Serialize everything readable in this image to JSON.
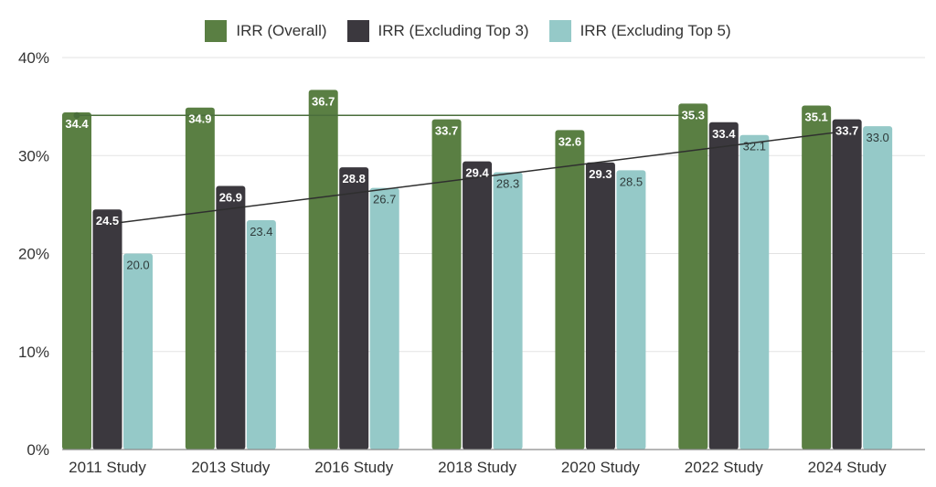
{
  "colors": {
    "overall": "#5a7f43",
    "ex3": "#3b383e",
    "ex5": "#95c9c8",
    "grid": "#e3e3e3",
    "axis": "#8a8a8a",
    "text": "#333333",
    "trend_overall": "#4a6e3c",
    "trend_ex3": "#2f2f2f"
  },
  "chart_data": {
    "type": "bar",
    "categories": [
      "2011 Study",
      "2013 Study",
      "2016 Study",
      "2018 Study",
      "2020 Study",
      "2022 Study",
      "2024 Study"
    ],
    "series": [
      {
        "name": "IRR (Overall)",
        "values": [
          34.4,
          34.9,
          36.7,
          33.7,
          32.6,
          35.3,
          35.1
        ],
        "color": "#5a7f43"
      },
      {
        "name": "IRR (Excluding Top 3)",
        "values": [
          24.5,
          26.9,
          28.8,
          29.4,
          29.3,
          33.4,
          33.7
        ],
        "color": "#3b383e"
      },
      {
        "name": "IRR (Excluding Top 5)",
        "values": [
          20.0,
          23.4,
          26.7,
          28.3,
          28.5,
          32.1,
          33.0
        ],
        "color": "#95c9c8"
      }
    ],
    "data_labels": [
      [
        "34.4",
        "34.9",
        "36.7",
        "33.7",
        "32.6",
        "35.3",
        "35.1"
      ],
      [
        "24.5",
        "26.9",
        "28.8",
        "29.4",
        "29.3",
        "33.4",
        "33.7"
      ],
      [
        "20.0",
        "23.4",
        "26.7",
        "28.3",
        "28.5",
        "32.1",
        "33.0"
      ]
    ],
    "y_ticks": [
      0,
      10,
      20,
      30,
      40
    ],
    "y_tick_labels": [
      "0%",
      "10%",
      "20%",
      "30%",
      "40%"
    ],
    "ylim": [
      0,
      40
    ],
    "grid": true,
    "legend_position": "top-center",
    "trend_lines": [
      {
        "series": "IRR (Overall)",
        "start": 34.1,
        "end": 34.1,
        "from_category": 0,
        "to_category": 5
      },
      {
        "series": "IRR (Excluding Top 3)",
        "start": 23.0,
        "end": 32.5,
        "from_category": 0,
        "to_category": 6
      }
    ]
  }
}
